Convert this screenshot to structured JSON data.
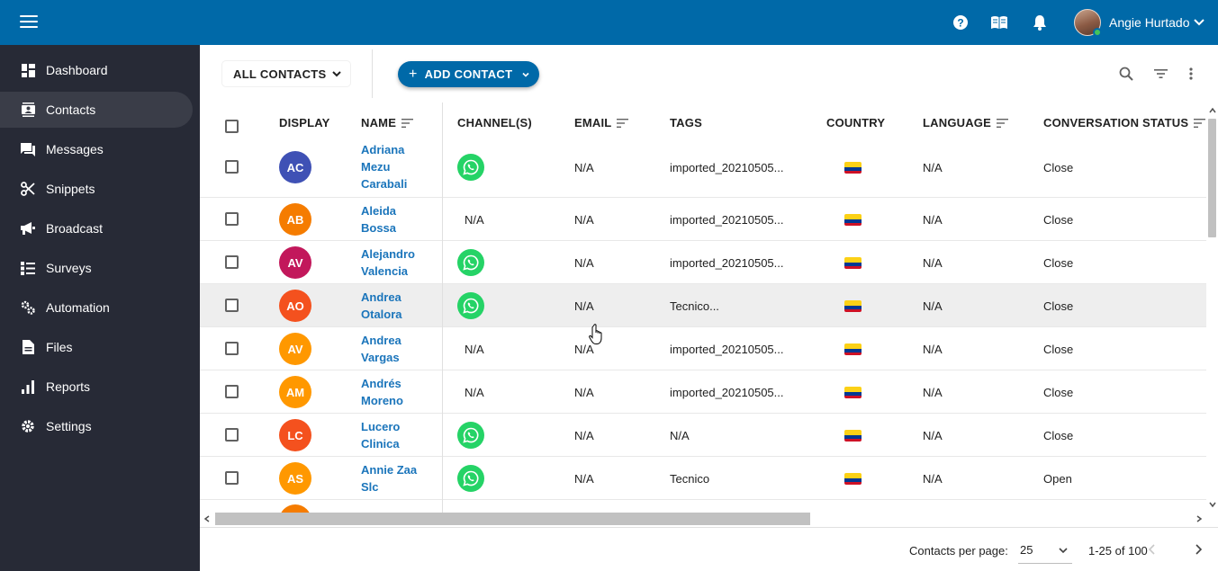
{
  "topbar": {
    "user_name": "Angie Hurtado",
    "icons": [
      "menu-icon",
      "help-icon",
      "book-icon",
      "bell-icon",
      "chevron-down-icon"
    ],
    "color": "#0069a8"
  },
  "sidebar": {
    "items": [
      {
        "label": "Dashboard",
        "icon": "dashboard-icon"
      },
      {
        "label": "Contacts",
        "icon": "contacts-icon",
        "active": true
      },
      {
        "label": "Messages",
        "icon": "messages-icon"
      },
      {
        "label": "Snippets",
        "icon": "scissors-icon"
      },
      {
        "label": "Broadcast",
        "icon": "megaphone-icon"
      },
      {
        "label": "Surveys",
        "icon": "checklist-icon"
      },
      {
        "label": "Automation",
        "icon": "gears-icon"
      },
      {
        "label": "Files",
        "icon": "file-icon"
      },
      {
        "label": "Reports",
        "icon": "bar-chart-icon"
      },
      {
        "label": "Settings",
        "icon": "gear-icon"
      }
    ]
  },
  "toolbar": {
    "filter_label": "ALL CONTACTS",
    "add_label": "ADD CONTACT"
  },
  "table": {
    "headers": {
      "display": "DISPLAY",
      "name": "NAME",
      "channels": "CHANNEL(S)",
      "email": "EMAIL",
      "tags": "TAGS",
      "country": "COUNTRY",
      "language": "LANGUAGE",
      "status": "CONVERSATION STATUS"
    },
    "rows": [
      {
        "initials": "AC",
        "color": "#3f51b5",
        "name": "Adriana Mezu Carabali",
        "channel": "whatsapp",
        "channel_text": "",
        "email": "N/A",
        "tags": "imported_20210505...",
        "language": "N/A",
        "status": "Close"
      },
      {
        "initials": "AB",
        "color": "#f57c00",
        "name": "Aleida Bossa",
        "channel": "none",
        "channel_text": "N/A",
        "email": "N/A",
        "tags": "imported_20210505...",
        "language": "N/A",
        "status": "Close"
      },
      {
        "initials": "AV",
        "color": "#c2185b",
        "name": "Alejandro Valencia",
        "channel": "whatsapp",
        "channel_text": "",
        "email": "N/A",
        "tags": "imported_20210505...",
        "language": "N/A",
        "status": "Close"
      },
      {
        "initials": "AO",
        "color": "#f4511e",
        "name": "Andrea Otalora",
        "channel": "whatsapp",
        "channel_text": "",
        "email": "N/A",
        "tags": "Tecnico...",
        "language": "N/A",
        "status": "Close"
      },
      {
        "initials": "AV",
        "color": "#ff9800",
        "name": "Andrea Vargas",
        "channel": "none",
        "channel_text": "N/A",
        "email": "N/A",
        "tags": "imported_20210505...",
        "language": "N/A",
        "status": "Close"
      },
      {
        "initials": "AM",
        "color": "#ff9800",
        "name": "Andrés Moreno",
        "channel": "none",
        "channel_text": "N/A",
        "email": "N/A",
        "tags": "imported_20210505...",
        "language": "N/A",
        "status": "Close"
      },
      {
        "initials": "LC",
        "color": "#f4511e",
        "name": "Lucero Clinica",
        "channel": "whatsapp",
        "channel_text": "",
        "email": "N/A",
        "tags": "N/A",
        "language": "N/A",
        "status": "Close"
      },
      {
        "initials": "AS",
        "color": "#ff9800",
        "name": "Annie Zaa Slc",
        "channel": "whatsapp",
        "channel_text": "",
        "email": "N/A",
        "tags": "Tecnico",
        "language": "N/A",
        "status": "Open"
      }
    ]
  },
  "footer": {
    "per_page_label": "Contacts per page:",
    "per_page_value": "25",
    "range": "1-25 of 100"
  }
}
